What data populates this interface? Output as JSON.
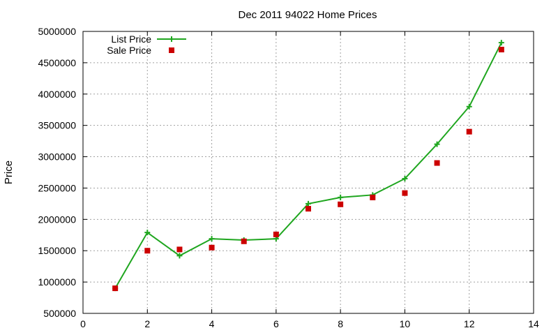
{
  "chart_data": {
    "type": "line",
    "title": "Dec 2011 94022 Home Prices",
    "xlabel": "",
    "ylabel": "Price",
    "xlim": [
      0,
      14
    ],
    "ylim": [
      500000,
      5000000
    ],
    "x_ticks": [
      0,
      2,
      4,
      6,
      8,
      10,
      12,
      14
    ],
    "y_ticks": [
      500000,
      1000000,
      1500000,
      2000000,
      2500000,
      3000000,
      3500000,
      4000000,
      4500000,
      5000000
    ],
    "grid": true,
    "legend_position": "top-left",
    "series": [
      {
        "name": "List Price",
        "style": "line-with-plus-markers",
        "color": "#1fa61f",
        "x": [
          1,
          2,
          3,
          4,
          5,
          6,
          7,
          8,
          9,
          10,
          11,
          12,
          13
        ],
        "values": [
          900000,
          1790000,
          1420000,
          1690000,
          1670000,
          1690000,
          2250000,
          2350000,
          2390000,
          2650000,
          3200000,
          3800000,
          4820000
        ]
      },
      {
        "name": "Sale Price",
        "style": "square-markers",
        "color": "#cc0000",
        "x": [
          1,
          2,
          3,
          4,
          5,
          6,
          7,
          8,
          9,
          10,
          11,
          12,
          13
        ],
        "values": [
          900000,
          1500000,
          1520000,
          1550000,
          1650000,
          1760000,
          2170000,
          2240000,
          2350000,
          2420000,
          2900000,
          3400000,
          4710000
        ]
      }
    ]
  }
}
